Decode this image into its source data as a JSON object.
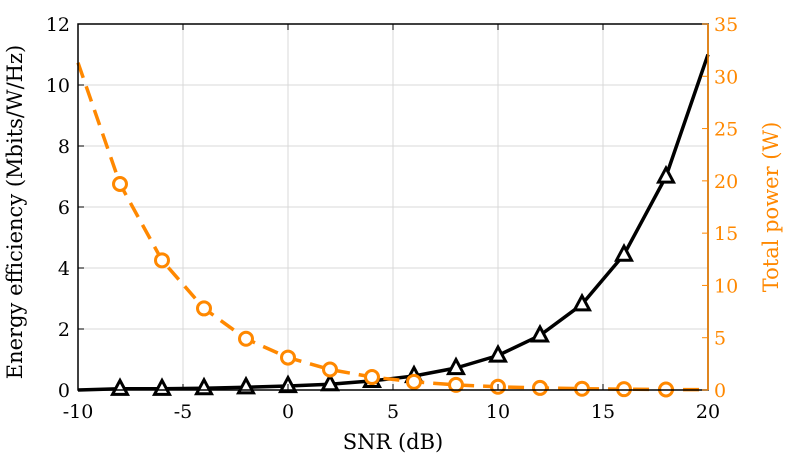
{
  "chart_data": {
    "type": "line",
    "xlabel": "SNR (dB)",
    "ylabel": "Energy efficiency (Mbits/W/Hz)",
    "y2label": "Total power (W)",
    "xlim": [
      -10,
      20
    ],
    "ylim": [
      0,
      12
    ],
    "y2lim": [
      0,
      35
    ],
    "xticks": [
      "-10",
      "-5",
      "0",
      "5",
      "10",
      "15",
      "20"
    ],
    "yticks": [
      "0",
      "2",
      "4",
      "6",
      "8",
      "10",
      "12"
    ],
    "y2ticks": [
      "0",
      "5",
      "10",
      "15",
      "20",
      "25",
      "30",
      "35"
    ],
    "grid": true,
    "legend": "none",
    "colors": {
      "left": "#000000",
      "right": "#ff8800",
      "grid": "#d9d9d9"
    },
    "series": [
      {
        "axis": "left",
        "line_style": "solid",
        "marker": "triangle",
        "x": [
          -10,
          -8,
          -6,
          -4,
          -2,
          0,
          2,
          4,
          6,
          8,
          10,
          12,
          14,
          16,
          18,
          20
        ],
        "y": [
          0.0,
          0.04,
          0.04,
          0.06,
          0.09,
          0.13,
          0.19,
          0.3,
          0.46,
          0.72,
          1.13,
          1.79,
          2.81,
          4.44,
          7.0,
          11.0
        ],
        "marker_x": [
          -8,
          -6,
          -4,
          -2,
          0,
          2,
          4,
          6,
          8,
          10,
          12,
          14,
          16,
          18
        ]
      },
      {
        "axis": "right",
        "line_style": "dashed",
        "marker": "circle",
        "x": [
          -10,
          -8,
          -6,
          -4,
          -2,
          0,
          2,
          4,
          6,
          8,
          10,
          12,
          14,
          16,
          18,
          20
        ],
        "y": [
          31.3,
          19.7,
          12.4,
          7.8,
          4.9,
          3.1,
          1.96,
          1.24,
          0.78,
          0.49,
          0.31,
          0.2,
          0.12,
          0.08,
          0.05,
          0.03
        ],
        "marker_x": [
          -8,
          -6,
          -4,
          -2,
          0,
          2,
          4,
          6,
          8,
          10,
          12,
          14,
          16,
          18
        ]
      }
    ]
  }
}
